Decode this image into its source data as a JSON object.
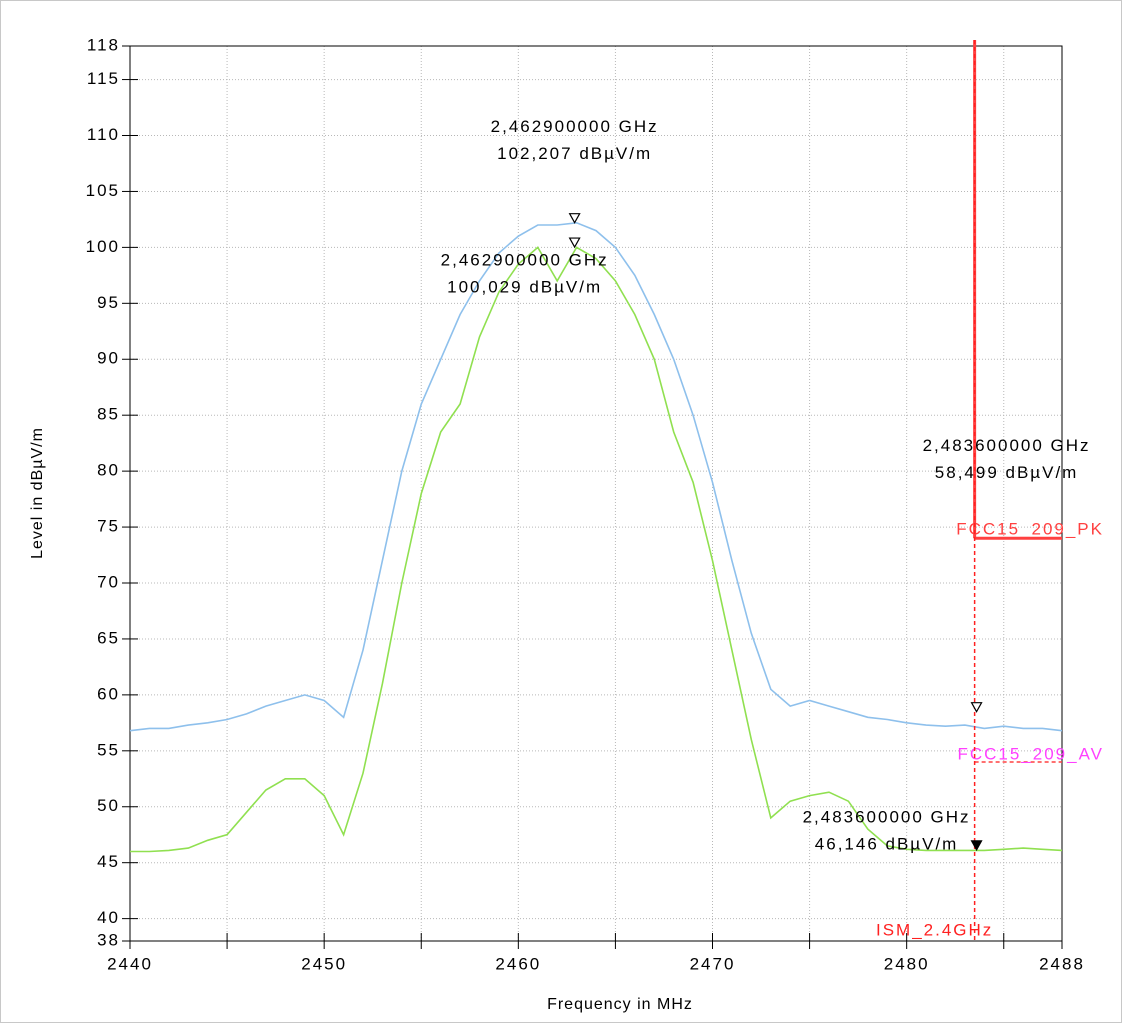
{
  "chart_data": {
    "type": "line",
    "xlabel": "Frequency in MHz",
    "ylabel": "Level in dBµV/m",
    "xlim": [
      2440,
      2488
    ],
    "ylim": [
      38,
      118
    ],
    "xticks": [
      2440,
      2450,
      2460,
      2470,
      2480,
      2488
    ],
    "x_minor_ticks": [
      2445,
      2455,
      2465,
      2475,
      2485
    ],
    "yticks": [
      38,
      40,
      45,
      50,
      55,
      60,
      65,
      70,
      75,
      80,
      85,
      90,
      95,
      100,
      105,
      110,
      115,
      118
    ],
    "grid": true,
    "x": [
      2440,
      2441,
      2442,
      2443,
      2444,
      2445,
      2446,
      2447,
      2448,
      2449,
      2450,
      2451,
      2452,
      2453,
      2454,
      2455,
      2456,
      2457,
      2458,
      2459,
      2460,
      2461,
      2462,
      2463,
      2464,
      2465,
      2466,
      2467,
      2468,
      2469,
      2470,
      2471,
      2472,
      2473,
      2474,
      2475,
      2476,
      2477,
      2478,
      2479,
      2480,
      2481,
      2482,
      2483,
      2484,
      2485,
      2486,
      2487,
      2488
    ],
    "series": [
      {
        "color": "#8ec0ec",
        "values": [
          56.8,
          57,
          57,
          57.3,
          57.5,
          57.8,
          58.3,
          59,
          59.5,
          60,
          59.5,
          58,
          64,
          72,
          80,
          86,
          90,
          94,
          97,
          99.5,
          101,
          102,
          102,
          102.2,
          101.5,
          100,
          97.5,
          94,
          90,
          85,
          79,
          72,
          65.5,
          60.5,
          59,
          59.5,
          59,
          58.5,
          58,
          57.8,
          57.5,
          57.3,
          57.2,
          57.3,
          57,
          57.2,
          57,
          57,
          56.8
        ]
      },
      {
        "color": "#90e050",
        "values": [
          46,
          46,
          46.1,
          46.3,
          47,
          47.5,
          49.5,
          51.5,
          52.5,
          52.5,
          51,
          47.5,
          53,
          61,
          70,
          78,
          83.5,
          86,
          92,
          96,
          98.5,
          100,
          97,
          100,
          99,
          97,
          94,
          90,
          83.5,
          79,
          72,
          64,
          56,
          49,
          50.5,
          51,
          51.3,
          50.5,
          48,
          46.5,
          46.2,
          46.1,
          46.1,
          46.1,
          46.1,
          46.2,
          46.3,
          46.2,
          46.1
        ]
      }
    ],
    "limit_lines": [
      {
        "name": "FCC15_209_PK",
        "color": "#ff4040",
        "label_color": "#ff4040",
        "value": 74,
        "xrange": [
          2483.5,
          2488
        ],
        "dashed": false
      },
      {
        "name": "FCC15_209_AV",
        "color": "#ff4040",
        "label_color": "#ff40ff",
        "value": 54,
        "xrange": [
          2483.5,
          2488
        ],
        "dashed": true
      }
    ],
    "vertical_lines": [
      {
        "name": "ISM_2.4GHz",
        "color": "#ff2020",
        "x": 2483.5
      }
    ],
    "markers": [
      {
        "x": 2462.9,
        "y": 102.207,
        "label": [
          "2,462900000 GHz",
          "102,207 dBµV/m"
        ],
        "filled": false
      },
      {
        "x": 2462.9,
        "y": 100.029,
        "label": [
          "2,462900000 GHz",
          "100,029 dBµV/m"
        ],
        "filled": false
      },
      {
        "x": 2483.6,
        "y": 58.499,
        "label": [
          "2,483600000 GHz",
          "58,499 dBµV/m"
        ],
        "filled": false
      },
      {
        "x": 2483.6,
        "y": 46.146,
        "label": [
          "2,483600000 GHz",
          "46,146 dBµV/m"
        ],
        "filled": true
      }
    ]
  }
}
